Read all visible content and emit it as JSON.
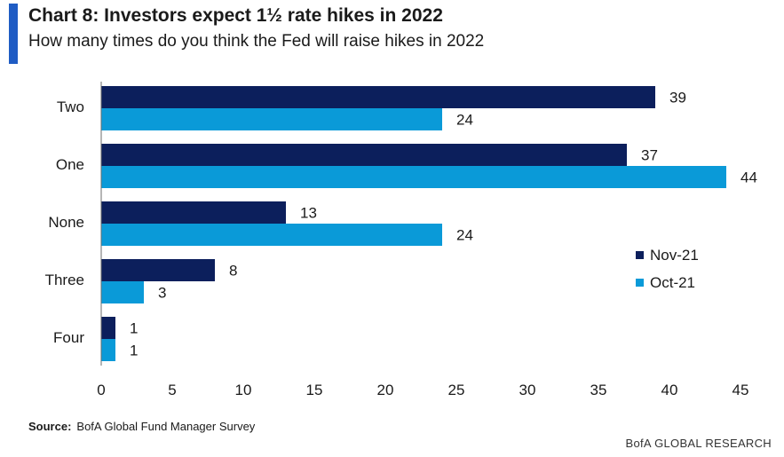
{
  "header": {
    "title": "Chart 8: Investors expect 1½  rate hikes in 2022",
    "subtitle": "How many times do you think the Fed will raise hikes in 2022"
  },
  "footer": {
    "source_label": "Source:",
    "source_text": "BofA Global Fund Manager Survey",
    "brand": "BofA GLOBAL RESEARCH"
  },
  "colors": {
    "accent": "#1f5cc4",
    "nov21": "#0c1f5c",
    "oct21": "#0a9ad8"
  },
  "chart_data": {
    "type": "bar",
    "orientation": "horizontal",
    "title": "Chart 8: Investors expect 1½  rate hikes in 2022",
    "subtitle": "How many times do you think the Fed will raise hikes in 2022",
    "categories": [
      "Two",
      "One",
      "None",
      "Three",
      "Four"
    ],
    "series": [
      {
        "name": "Nov-21",
        "color": "#0c1f5c",
        "values": [
          39,
          37,
          13,
          8,
          1
        ]
      },
      {
        "name": "Oct-21",
        "color": "#0a9ad8",
        "values": [
          24,
          44,
          24,
          3,
          1
        ]
      }
    ],
    "xlim": [
      0,
      45
    ],
    "xticks": [
      0,
      5,
      10,
      15,
      20,
      25,
      30,
      35,
      40,
      45
    ],
    "xlabel": "",
    "ylabel": "",
    "grid": false,
    "data_labels": true,
    "legend_position": "right"
  }
}
